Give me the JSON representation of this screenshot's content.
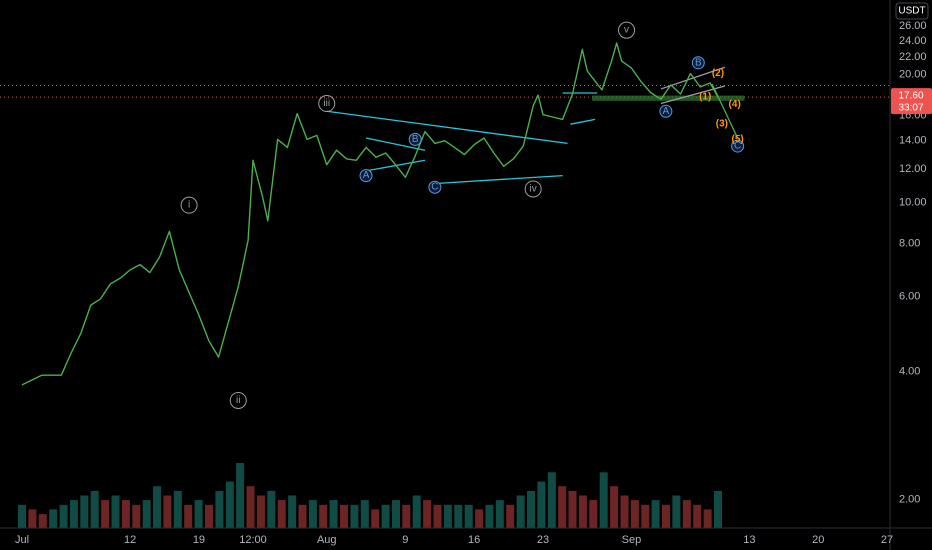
{
  "chart_data": {
    "type": "line",
    "currency_label": "USDT",
    "y_scale": "log",
    "ylim": [
      1.75,
      29
    ],
    "y_ticks": [
      "2.00",
      "4.00",
      "6.00",
      "8.00",
      "10.00",
      "12.00",
      "14.00",
      "16.00",
      "18.00",
      "20.00",
      "22.00",
      "24.00",
      "26.00"
    ],
    "x_ticks": [
      {
        "label": "Jul",
        "d": 0
      },
      {
        "label": "12",
        "d": 11
      },
      {
        "label": "19",
        "d": 18
      },
      {
        "label": "12:00",
        "d": 23.5
      },
      {
        "label": "Aug",
        "d": 31
      },
      {
        "label": "9",
        "d": 39
      },
      {
        "label": "16",
        "d": 46
      },
      {
        "label": "23",
        "d": 53
      },
      {
        "label": "Sep",
        "d": 62
      },
      {
        "label": "13",
        "d": 74
      },
      {
        "label": "20",
        "d": 81
      },
      {
        "label": "27",
        "d": 88
      }
    ],
    "last_price": "17.60",
    "countdown": "33:07",
    "prev_close": 18.75,
    "colors": {
      "line": "#4caf50",
      "up": "#26a69a",
      "down": "#ef5350",
      "trend": "#26c6da",
      "accent": "#2962ff",
      "orange": "#ff9800",
      "wave_gray": "#9e9e9e"
    },
    "price_series": [
      {
        "d": 0,
        "v": 3.7
      },
      {
        "d": 2,
        "v": 3.9
      },
      {
        "d": 4,
        "v": 3.9
      },
      {
        "d": 5,
        "v": 4.4
      },
      {
        "d": 6,
        "v": 4.9
      },
      {
        "d": 7,
        "v": 5.7
      },
      {
        "d": 8,
        "v": 5.9
      },
      {
        "d": 9,
        "v": 6.4
      },
      {
        "d": 10,
        "v": 6.6
      },
      {
        "d": 11,
        "v": 6.9
      },
      {
        "d": 12,
        "v": 7.1
      },
      {
        "d": 13,
        "v": 6.8
      },
      {
        "d": 14,
        "v": 7.4
      },
      {
        "d": 15,
        "v": 8.5
      },
      {
        "d": 16,
        "v": 6.9
      },
      {
        "d": 17,
        "v": 6.1
      },
      {
        "d": 18,
        "v": 5.4
      },
      {
        "d": 19,
        "v": 4.7
      },
      {
        "d": 20,
        "v": 4.3
      },
      {
        "d": 21,
        "v": 5.2
      },
      {
        "d": 22,
        "v": 6.3
      },
      {
        "d": 23,
        "v": 8.1
      },
      {
        "d": 23.5,
        "v": 12.5
      },
      {
        "d": 24.5,
        "v": 10.2
      },
      {
        "d": 25,
        "v": 9.0
      },
      {
        "d": 26,
        "v": 14.0
      },
      {
        "d": 27,
        "v": 13.4
      },
      {
        "d": 28,
        "v": 16.1
      },
      {
        "d": 29,
        "v": 14.0
      },
      {
        "d": 30,
        "v": 14.3
      },
      {
        "d": 31,
        "v": 12.2
      },
      {
        "d": 32,
        "v": 13.2
      },
      {
        "d": 33,
        "v": 12.6
      },
      {
        "d": 34,
        "v": 12.5
      },
      {
        "d": 35,
        "v": 13.4
      },
      {
        "d": 36,
        "v": 12.7
      },
      {
        "d": 37,
        "v": 13.0
      },
      {
        "d": 38,
        "v": 12.2
      },
      {
        "d": 39,
        "v": 11.4
      },
      {
        "d": 40,
        "v": 12.8
      },
      {
        "d": 41,
        "v": 14.6
      },
      {
        "d": 42,
        "v": 13.7
      },
      {
        "d": 43,
        "v": 13.9
      },
      {
        "d": 44,
        "v": 13.4
      },
      {
        "d": 45,
        "v": 12.9
      },
      {
        "d": 46,
        "v": 13.6
      },
      {
        "d": 47,
        "v": 14.1
      },
      {
        "d": 48,
        "v": 13.0
      },
      {
        "d": 49,
        "v": 12.1
      },
      {
        "d": 50,
        "v": 12.6
      },
      {
        "d": 51,
        "v": 13.5
      },
      {
        "d": 52,
        "v": 16.8
      },
      {
        "d": 52.5,
        "v": 17.8
      },
      {
        "d": 53,
        "v": 16.0
      },
      {
        "d": 54,
        "v": 15.8
      },
      {
        "d": 55,
        "v": 15.6
      },
      {
        "d": 56,
        "v": 17.9
      },
      {
        "d": 57,
        "v": 22.8
      },
      {
        "d": 57.5,
        "v": 20.3
      },
      {
        "d": 58,
        "v": 19.6
      },
      {
        "d": 59,
        "v": 18.3
      },
      {
        "d": 60,
        "v": 21.5
      },
      {
        "d": 60.5,
        "v": 23.6
      },
      {
        "d": 61,
        "v": 21.4
      },
      {
        "d": 62,
        "v": 20.6
      },
      {
        "d": 63,
        "v": 19.1
      },
      {
        "d": 64,
        "v": 18.0
      },
      {
        "d": 65,
        "v": 17.4
      },
      {
        "d": 66,
        "v": 18.8
      },
      {
        "d": 67,
        "v": 17.9
      },
      {
        "d": 68,
        "v": 20.0
      },
      {
        "d": 69,
        "v": 18.6
      },
      {
        "d": 70,
        "v": 19.0
      },
      {
        "d": 70.8,
        "v": 17.6
      }
    ],
    "volume_series": [
      5,
      4,
      3,
      4,
      5,
      6,
      7,
      8,
      6,
      7,
      6,
      5,
      6,
      9,
      7,
      8,
      5,
      6,
      5,
      8,
      10,
      14,
      9,
      7,
      8,
      6,
      7,
      5,
      6,
      5,
      6,
      5,
      5,
      6,
      4,
      5,
      6,
      5,
      7,
      6,
      5,
      5,
      5,
      5,
      4,
      5,
      6,
      5,
      7,
      8,
      10,
      12,
      9,
      8,
      7,
      6,
      12,
      9,
      7,
      6,
      5,
      6,
      5,
      7,
      6,
      5,
      4,
      8
    ],
    "waves": [
      {
        "label": "i",
        "d": 17,
        "v": 9.8,
        "style": "gray"
      },
      {
        "label": "ii",
        "d": 22,
        "v": 3.4,
        "style": "gray"
      },
      {
        "label": "iii",
        "d": 31,
        "v": 17.0,
        "style": "gray"
      },
      {
        "label": "iv",
        "d": 52,
        "v": 10.7,
        "style": "gray"
      },
      {
        "label": "v",
        "d": 61.5,
        "v": 25.3,
        "style": "gray"
      },
      {
        "label": "A",
        "d": 35,
        "v": 11.5,
        "style": "blue"
      },
      {
        "label": "B",
        "d": 40,
        "v": 14.0,
        "style": "blue"
      },
      {
        "label": "C",
        "d": 42,
        "v": 10.8,
        "style": "blue"
      },
      {
        "label": "A",
        "d": 65.5,
        "v": 16.3,
        "style": "blue"
      },
      {
        "label": "B",
        "d": 68.8,
        "v": 21.2,
        "style": "blue"
      },
      {
        "label": "C",
        "d": 72.8,
        "v": 13.5,
        "style": "blue"
      },
      {
        "label": "(1)",
        "d": 69.5,
        "v": 17.6,
        "style": "orange"
      },
      {
        "label": "(2)",
        "d": 70.8,
        "v": 20.0,
        "style": "orange"
      },
      {
        "label": "(3)",
        "d": 71.2,
        "v": 15.2,
        "style": "orange"
      },
      {
        "label": "(4)",
        "d": 72.5,
        "v": 16.9,
        "style": "orange"
      },
      {
        "label": "(5)",
        "d": 72.8,
        "v": 14.0,
        "style": "orange"
      }
    ],
    "trendlines": [
      {
        "d1": 31,
        "v1": 16.3,
        "d2": 55.5,
        "v2": 13.7,
        "color": "trend"
      },
      {
        "d1": 41.5,
        "v1": 11.0,
        "d2": 55,
        "v2": 11.5,
        "color": "trend"
      },
      {
        "d1": 35,
        "v1": 14.1,
        "d2": 41,
        "v2": 13.2,
        "color": "trend"
      },
      {
        "d1": 35,
        "v1": 11.8,
        "d2": 41,
        "v2": 12.5,
        "color": "trend"
      },
      {
        "d1": 55,
        "v1": 18.0,
        "d2": 58.5,
        "v2": 18.0,
        "color": "trend"
      },
      {
        "d1": 55.8,
        "v1": 15.2,
        "d2": 58.3,
        "v2": 15.6,
        "color": "trend"
      },
      {
        "d1": 65,
        "v1": 18.4,
        "d2": 71.5,
        "v2": 20.7,
        "color": "wave_gray"
      },
      {
        "d1": 65,
        "v1": 17.0,
        "d2": 71.5,
        "v2": 18.7,
        "color": "wave_gray"
      },
      {
        "d1": 70.2,
        "v1": 18.9,
        "d2": 72.8,
        "v2": 14.1,
        "color": "line"
      }
    ],
    "zone": {
      "d1": 58,
      "d2": 73.5,
      "v1": 17.25,
      "v2": 17.75
    }
  }
}
